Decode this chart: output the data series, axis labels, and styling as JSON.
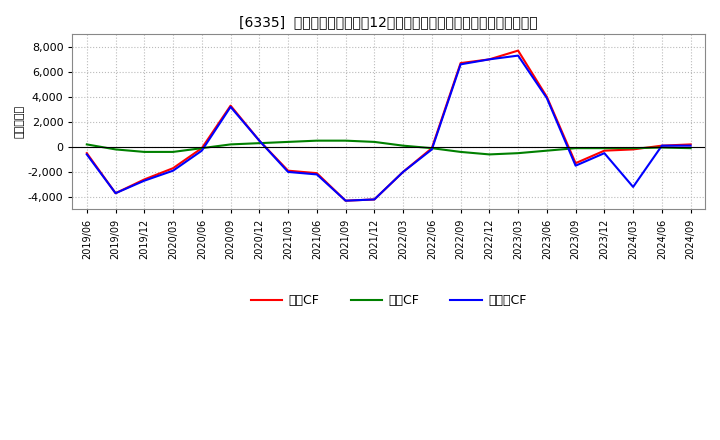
{
  "title": "[6335]  キャッシュフローの12か月移動合計の対前年同期増減額の推移",
  "ylabel": "（百万円）",
  "ylim": [
    -5000,
    9000
  ],
  "yticks": [
    -4000,
    -2000,
    0,
    2000,
    4000,
    6000,
    8000
  ],
  "background_color": "#ffffff",
  "plot_bg_color": "#ffffff",
  "grid_color": "#bbbbbb",
  "legend": [
    "営業CF",
    "投資CF",
    "フリーCF"
  ],
  "legend_colors": [
    "#ff0000",
    "#008000",
    "#0000ff"
  ],
  "dates": [
    "2019/06",
    "2019/09",
    "2019/12",
    "2020/03",
    "2020/06",
    "2020/09",
    "2020/12",
    "2021/03",
    "2021/06",
    "2021/09",
    "2021/12",
    "2022/03",
    "2022/06",
    "2022/09",
    "2022/12",
    "2023/03",
    "2023/06",
    "2023/09",
    "2023/12",
    "2024/03",
    "2024/06",
    "2024/09"
  ],
  "eigyo_cf": [
    -500,
    -3700,
    -2600,
    -1700,
    -100,
    3300,
    500,
    -1900,
    -2100,
    -4300,
    -4200,
    -2000,
    -100,
    6700,
    7000,
    7700,
    4000,
    -1300,
    -300,
    -200,
    100,
    200
  ],
  "toshi_cf": [
    200,
    -200,
    -400,
    -400,
    -100,
    200,
    300,
    400,
    500,
    500,
    400,
    100,
    -100,
    -400,
    -600,
    -500,
    -300,
    -100,
    -100,
    -100,
    -50,
    -100
  ],
  "free_cf": [
    -600,
    -3700,
    -2700,
    -1900,
    -300,
    3200,
    500,
    -2000,
    -2200,
    -4300,
    -4200,
    -2000,
    -200,
    6600,
    7000,
    7300,
    3900,
    -1500,
    -500,
    -3200,
    100,
    100
  ]
}
